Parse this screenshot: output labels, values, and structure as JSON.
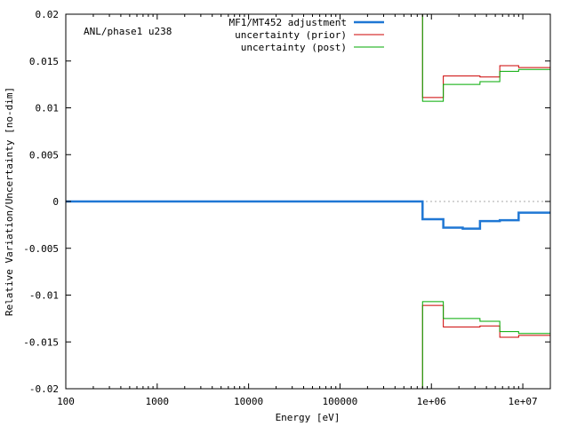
{
  "chart_data": {
    "type": "line",
    "title": "",
    "annotation": "ANL/phase1 u238",
    "xlabel": "Energy [eV]",
    "ylabel": "Relative Variation/Uncertainty [no-dim]",
    "x_scale": "log",
    "xlim": [
      100,
      20000000
    ],
    "ylim": [
      -0.02,
      0.02
    ],
    "x_ticks": [
      {
        "value": 100,
        "label": "100"
      },
      {
        "value": 1000,
        "label": "1000"
      },
      {
        "value": 10000,
        "label": "10000"
      },
      {
        "value": 100000,
        "label": "100000"
      },
      {
        "value": 1000000,
        "label": "1e+06"
      },
      {
        "value": 10000000,
        "label": "1e+07"
      }
    ],
    "y_ticks": [
      {
        "value": 0.02,
        "label": "0.02"
      },
      {
        "value": 0.015,
        "label": "0.015"
      },
      {
        "value": 0.01,
        "label": "0.01"
      },
      {
        "value": 0.005,
        "label": "0.005"
      },
      {
        "value": 0,
        "label": "0"
      },
      {
        "value": -0.005,
        "label": "-0.005"
      },
      {
        "value": -0.01,
        "label": "-0.01"
      },
      {
        "value": -0.015,
        "label": "-0.015"
      },
      {
        "value": -0.02,
        "label": "-0.02"
      }
    ],
    "grid": false,
    "legend_position": "top-right",
    "zero_line": true,
    "bin_edges": [
      100,
      800000,
      1350000,
      2200000,
      3400000,
      5600000,
      9000000,
      20000000
    ],
    "series": [
      {
        "name": "MF1/MT452 adjustment",
        "color": "#1f77d4",
        "width": 2.5,
        "mirror": false,
        "values": [
          0,
          -0.0019,
          -0.0028,
          -0.0029,
          -0.0021,
          -0.002,
          -0.0012
        ]
      },
      {
        "name": "uncertainty (prior)",
        "color": "#cc0000",
        "width": 1,
        "mirror": true,
        "values": [
          0.02,
          0.0111,
          0.0134,
          0.0134,
          0.0133,
          0.0145,
          0.0143
        ]
      },
      {
        "name": "uncertainty (post)",
        "color": "#00aa00",
        "width": 1,
        "mirror": true,
        "values": [
          0.02,
          0.0107,
          0.0125,
          0.0125,
          0.0128,
          0.0139,
          0.0141
        ]
      }
    ]
  }
}
